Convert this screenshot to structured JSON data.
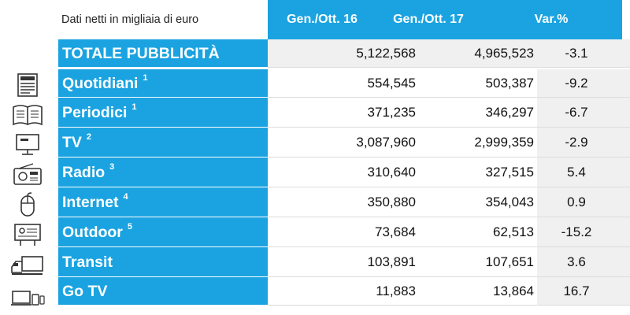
{
  "header": {
    "note": "Dati netti in migliaia di euro",
    "col1": "Gen./Ott. 16",
    "col2": "Gen./Ott. 17",
    "col3": "Var.%"
  },
  "rows": [
    {
      "label": "TOTALE PUBBLICITÀ",
      "sup": "",
      "v16": "5,122,568",
      "v17": "4,965,523",
      "var": "-3.1",
      "icon": ""
    },
    {
      "label": "Quotidiani",
      "sup": "1",
      "v16": "554,545",
      "v17": "503,387",
      "var": "-9.2",
      "icon": "newspaper-icon"
    },
    {
      "label": "Periodici",
      "sup": "1",
      "v16": "371,235",
      "v17": "346,297",
      "var": "-6.7",
      "icon": "open-book-icon"
    },
    {
      "label": "TV",
      "sup": "2",
      "v16": "3,087,960",
      "v17": "2,999,359",
      "var": "-2.9",
      "icon": "tv-monitor-icon"
    },
    {
      "label": "Radio",
      "sup": "3",
      "v16": "310,640",
      "v17": "327,515",
      "var": "5.4",
      "icon": "radio-icon"
    },
    {
      "label": "Internet",
      "sup": "4",
      "v16": "350,880",
      "v17": "354,043",
      "var": "0.9",
      "icon": "mouse-icon"
    },
    {
      "label": "Outdoor",
      "sup": "5",
      "v16": "73,684",
      "v17": "62,513",
      "var": "-15.2",
      "icon": "billboard-icon"
    },
    {
      "label": "Transit",
      "sup": "",
      "v16": "103,891",
      "v17": "107,651",
      "var": "3.6",
      "icon": "truck-icon"
    },
    {
      "label": "Go TV",
      "sup": "",
      "v16": "11,883",
      "v17": "13,864",
      "var": "16.7",
      "icon": "devices-icon"
    }
  ],
  "colors": {
    "accent": "#1aa3e0",
    "shade": "#f0f0f0",
    "icon": "#333333"
  }
}
